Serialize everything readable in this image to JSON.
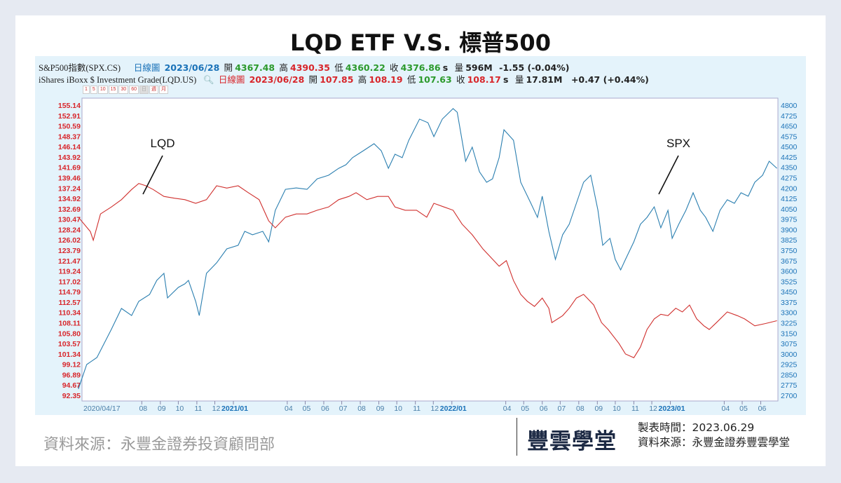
{
  "title": "LQD ETF V.S. 標普500",
  "header": {
    "spx": {
      "name": "S&P500指數(SPX.CS)",
      "chart_type": "日線圖",
      "date": "2023/06/28",
      "open_label": "開",
      "open": "4367.48",
      "high_label": "高",
      "high": "4390.35",
      "low_label": "低",
      "low": "4360.22",
      "close_label": "收",
      "close": "4376.86",
      "s": "s",
      "vol_label": "量",
      "vol": "596M",
      "change": "-1.55 (-0.04%)"
    },
    "lqd": {
      "name": "iShares iBoxx $ Investment Grade(LQD.US)",
      "search_icon": "magnifier-icon",
      "chart_type": "日線圖",
      "date": "2023/06/28",
      "open_label": "開",
      "open": "107.85",
      "high_label": "高",
      "high": "108.19",
      "low_label": "低",
      "low": "107.63",
      "close_label": "收",
      "close": "108.17",
      "s": "s",
      "vol_label": "量",
      "vol": "17.81M",
      "change": "+0.47 (+0.44%)"
    },
    "periods": [
      "1",
      "5",
      "10",
      "15",
      "30",
      "60",
      "日",
      "週",
      "月"
    ]
  },
  "colors": {
    "spx": "#2b7fb0",
    "lqd": "#d0302e",
    "left_axis": "#d8262b",
    "right_axis": "#1a72b8"
  },
  "chart_data": {
    "type": "line",
    "annotations": [
      "LQD",
      "SPX"
    ],
    "left_axis": {
      "ylim": [
        92.35,
        155.14
      ],
      "ticks": [
        "155.14",
        "152.91",
        "150.59",
        "148.37",
        "146.14",
        "143.92",
        "141.69",
        "139.46",
        "137.24",
        "134.92",
        "132.69",
        "130.47",
        "128.24",
        "126.02",
        "123.79",
        "121.47",
        "119.24",
        "117.02",
        "114.79",
        "112.57",
        "110.34",
        "108.11",
        "105.80",
        "103.57",
        "101.34",
        "99.12",
        "96.89",
        "94.67",
        "92.35"
      ]
    },
    "right_axis": {
      "ylim": [
        2700,
        4800
      ],
      "ticks": [
        "4800",
        "4725",
        "4650",
        "4575",
        "4500",
        "4425",
        "4350",
        "4275",
        "4200",
        "4125",
        "4050",
        "3975",
        "3900",
        "3825",
        "3750",
        "3675",
        "3600",
        "3525",
        "3450",
        "3375",
        "3300",
        "3225",
        "3150",
        "3075",
        "3000",
        "2925",
        "2850",
        "2775",
        "2700"
      ]
    },
    "x_ticks": [
      [
        "2020-04-17",
        "2020/04/17",
        false
      ],
      [
        "2020-08-01",
        "08",
        false
      ],
      [
        "2020-09-01",
        "09",
        false
      ],
      [
        "2020-10-01",
        "10",
        false
      ],
      [
        "2020-11-01",
        "11",
        false
      ],
      [
        "2020-12-01",
        "12",
        false
      ],
      [
        "2021-01-01",
        "2021/01",
        true
      ],
      [
        "2021-04-01",
        "04",
        false
      ],
      [
        "2021-05-01",
        "05",
        false
      ],
      [
        "2021-06-01",
        "06",
        false
      ],
      [
        "2021-07-01",
        "07",
        false
      ],
      [
        "2021-08-01",
        "08",
        false
      ],
      [
        "2021-09-01",
        "09",
        false
      ],
      [
        "2021-10-01",
        "10",
        false
      ],
      [
        "2021-11-01",
        "11",
        false
      ],
      [
        "2021-12-01",
        "12",
        false
      ],
      [
        "2022-01-01",
        "2022/01",
        true
      ],
      [
        "2022-04-01",
        "04",
        false
      ],
      [
        "2022-05-01",
        "05",
        false
      ],
      [
        "2022-06-01",
        "06",
        false
      ],
      [
        "2022-07-01",
        "07",
        false
      ],
      [
        "2022-08-01",
        "08",
        false
      ],
      [
        "2022-09-01",
        "09",
        false
      ],
      [
        "2022-10-01",
        "10",
        false
      ],
      [
        "2022-11-01",
        "11",
        false
      ],
      [
        "2022-12-01",
        "12",
        false
      ],
      [
        "2023-01-01",
        "2023/01",
        true
      ],
      [
        "2023-04-01",
        "04",
        false
      ],
      [
        "2023-05-01",
        "05",
        false
      ],
      [
        "2023-06-01",
        "06",
        false
      ]
    ],
    "series": [
      {
        "name": "SPX",
        "axis": "right",
        "points": [
          [
            "2020-04-17",
            2746
          ],
          [
            "2020-05-01",
            2923
          ],
          [
            "2020-05-18",
            2974
          ],
          [
            "2020-06-11",
            3177
          ],
          [
            "2020-06-28",
            3329
          ],
          [
            "2020-07-15",
            3278
          ],
          [
            "2020-07-27",
            3380
          ],
          [
            "2020-08-14",
            3430
          ],
          [
            "2020-08-26",
            3532
          ],
          [
            "2020-09-07",
            3583
          ],
          [
            "2020-09-13",
            3405
          ],
          [
            "2020-10-01",
            3481
          ],
          [
            "2020-10-12",
            3507
          ],
          [
            "2020-10-18",
            3532
          ],
          [
            "2020-10-30",
            3380
          ],
          [
            "2020-11-05",
            3278
          ],
          [
            "2020-11-17",
            3583
          ],
          [
            "2020-12-04",
            3659
          ],
          [
            "2020-12-21",
            3760
          ],
          [
            "2021-01-09",
            3786
          ],
          [
            "2021-01-20",
            3887
          ],
          [
            "2021-02-02",
            3862
          ],
          [
            "2021-02-19",
            3887
          ],
          [
            "2021-03-01",
            3811
          ],
          [
            "2021-03-12",
            4039
          ],
          [
            "2021-03-29",
            4191
          ],
          [
            "2021-04-16",
            4201
          ],
          [
            "2021-05-04",
            4191
          ],
          [
            "2021-05-21",
            4267
          ],
          [
            "2021-06-09",
            4293
          ],
          [
            "2021-06-26",
            4343
          ],
          [
            "2021-07-08",
            4369
          ],
          [
            "2021-07-19",
            4420
          ],
          [
            "2021-08-06",
            4470
          ],
          [
            "2021-08-24",
            4521
          ],
          [
            "2021-09-05",
            4470
          ],
          [
            "2021-09-17",
            4343
          ],
          [
            "2021-09-28",
            4445
          ],
          [
            "2021-10-10",
            4420
          ],
          [
            "2021-10-21",
            4546
          ],
          [
            "2021-11-08",
            4699
          ],
          [
            "2021-11-22",
            4673
          ],
          [
            "2021-12-02",
            4572
          ],
          [
            "2021-12-16",
            4699
          ],
          [
            "2022-01-03",
            4775
          ],
          [
            "2022-01-10",
            4749
          ],
          [
            "2022-01-18",
            4546
          ],
          [
            "2022-01-24",
            4394
          ],
          [
            "2022-02-04",
            4496
          ],
          [
            "2022-02-16",
            4318
          ],
          [
            "2022-02-28",
            4242
          ],
          [
            "2022-03-10",
            4267
          ],
          [
            "2022-03-21",
            4420
          ],
          [
            "2022-03-29",
            4622
          ],
          [
            "2022-04-14",
            4546
          ],
          [
            "2022-04-26",
            4242
          ],
          [
            "2022-05-13",
            4090
          ],
          [
            "2022-05-24",
            3988
          ],
          [
            "2022-06-01",
            4141
          ],
          [
            "2022-06-12",
            3887
          ],
          [
            "2022-06-23",
            3684
          ],
          [
            "2022-07-05",
            3862
          ],
          [
            "2022-07-16",
            3938
          ],
          [
            "2022-07-28",
            4090
          ],
          [
            "2022-08-09",
            4242
          ],
          [
            "2022-08-21",
            4293
          ],
          [
            "2022-09-02",
            4039
          ],
          [
            "2022-09-10",
            3786
          ],
          [
            "2022-09-22",
            3836
          ],
          [
            "2022-10-01",
            3684
          ],
          [
            "2022-10-10",
            3608
          ],
          [
            "2022-10-18",
            3684
          ],
          [
            "2022-11-01",
            3811
          ],
          [
            "2022-11-12",
            3938
          ],
          [
            "2022-11-23",
            3988
          ],
          [
            "2022-12-05",
            4064
          ],
          [
            "2022-12-16",
            3913
          ],
          [
            "2022-12-28",
            4039
          ],
          [
            "2023-01-04",
            3836
          ],
          [
            "2023-01-15",
            3938
          ],
          [
            "2023-01-27",
            4039
          ],
          [
            "2023-02-08",
            4166
          ],
          [
            "2023-02-20",
            4039
          ],
          [
            "2023-03-01",
            3988
          ],
          [
            "2023-03-13",
            3887
          ],
          [
            "2023-03-25",
            4039
          ],
          [
            "2023-04-06",
            4115
          ],
          [
            "2023-04-18",
            4090
          ],
          [
            "2023-04-29",
            4166
          ],
          [
            "2023-05-11",
            4141
          ],
          [
            "2023-05-22",
            4242
          ],
          [
            "2023-06-04",
            4293
          ],
          [
            "2023-06-15",
            4394
          ],
          [
            "2023-06-28",
            4343
          ]
        ]
      },
      {
        "name": "LQD",
        "axis": "left",
        "points": [
          [
            "2020-04-17",
            130.9
          ],
          [
            "2020-05-07",
            127.8
          ],
          [
            "2020-05-12",
            125.9
          ],
          [
            "2020-05-24",
            131.6
          ],
          [
            "2020-06-11",
            133.1
          ],
          [
            "2020-06-28",
            134.7
          ],
          [
            "2020-07-15",
            136.9
          ],
          [
            "2020-07-27",
            138.2
          ],
          [
            "2020-08-08",
            137.7
          ],
          [
            "2020-08-20",
            136.9
          ],
          [
            "2020-09-07",
            135.4
          ],
          [
            "2020-09-25",
            135.0
          ],
          [
            "2020-10-12",
            134.7
          ],
          [
            "2020-10-30",
            133.9
          ],
          [
            "2020-11-17",
            134.7
          ],
          [
            "2020-12-04",
            137.7
          ],
          [
            "2020-12-21",
            137.2
          ],
          [
            "2021-01-09",
            137.7
          ],
          [
            "2021-01-26",
            136.2
          ],
          [
            "2021-02-13",
            134.7
          ],
          [
            "2021-03-01",
            130.1
          ],
          [
            "2021-03-12",
            128.6
          ],
          [
            "2021-03-29",
            130.9
          ],
          [
            "2021-04-16",
            131.6
          ],
          [
            "2021-05-04",
            131.6
          ],
          [
            "2021-05-21",
            132.4
          ],
          [
            "2021-06-09",
            133.1
          ],
          [
            "2021-06-26",
            134.7
          ],
          [
            "2021-07-13",
            135.4
          ],
          [
            "2021-07-25",
            136.2
          ],
          [
            "2021-08-12",
            134.7
          ],
          [
            "2021-08-30",
            135.4
          ],
          [
            "2021-09-17",
            135.4
          ],
          [
            "2021-09-28",
            133.1
          ],
          [
            "2021-10-15",
            132.4
          ],
          [
            "2021-11-03",
            132.4
          ],
          [
            "2021-11-20",
            130.9
          ],
          [
            "2021-12-02",
            133.9
          ],
          [
            "2021-12-19",
            133.1
          ],
          [
            "2022-01-03",
            132.4
          ],
          [
            "2022-01-18",
            129.4
          ],
          [
            "2022-02-04",
            127.1
          ],
          [
            "2022-02-22",
            124.0
          ],
          [
            "2022-03-10",
            121.8
          ],
          [
            "2022-03-21",
            120.3
          ],
          [
            "2022-04-02",
            121.5
          ],
          [
            "2022-04-14",
            117.2
          ],
          [
            "2022-04-26",
            114.2
          ],
          [
            "2022-05-07",
            112.7
          ],
          [
            "2022-05-19",
            111.6
          ],
          [
            "2022-06-01",
            113.4
          ],
          [
            "2022-06-12",
            111.2
          ],
          [
            "2022-06-17",
            108.1
          ],
          [
            "2022-07-05",
            109.6
          ],
          [
            "2022-07-16",
            111.2
          ],
          [
            "2022-07-28",
            113.4
          ],
          [
            "2022-08-09",
            114.2
          ],
          [
            "2022-08-26",
            111.9
          ],
          [
            "2022-09-08",
            108.1
          ],
          [
            "2022-09-19",
            106.6
          ],
          [
            "2022-10-07",
            103.6
          ],
          [
            "2022-10-18",
            101.3
          ],
          [
            "2022-11-01",
            100.5
          ],
          [
            "2022-11-12",
            102.8
          ],
          [
            "2022-11-23",
            106.6
          ],
          [
            "2022-12-05",
            108.9
          ],
          [
            "2022-12-16",
            109.9
          ],
          [
            "2022-12-28",
            109.6
          ],
          [
            "2023-01-10",
            111.2
          ],
          [
            "2023-01-21",
            110.4
          ],
          [
            "2023-02-02",
            111.9
          ],
          [
            "2023-02-14",
            108.9
          ],
          [
            "2023-02-26",
            107.4
          ],
          [
            "2023-03-07",
            106.6
          ],
          [
            "2023-03-19",
            108.1
          ],
          [
            "2023-04-06",
            110.4
          ],
          [
            "2023-04-23",
            109.6
          ],
          [
            "2023-05-05",
            108.9
          ],
          [
            "2023-05-22",
            107.4
          ],
          [
            "2023-06-09",
            107.9
          ],
          [
            "2023-06-28",
            108.5
          ]
        ]
      }
    ]
  },
  "footer": {
    "left_source": "資料來源：永豐金證券投資顧問部",
    "logo": "豐雲學堂",
    "made_time": "製表時間：2023.06.29",
    "right_source": "資料來源：永豐金證券豐雲學堂"
  }
}
